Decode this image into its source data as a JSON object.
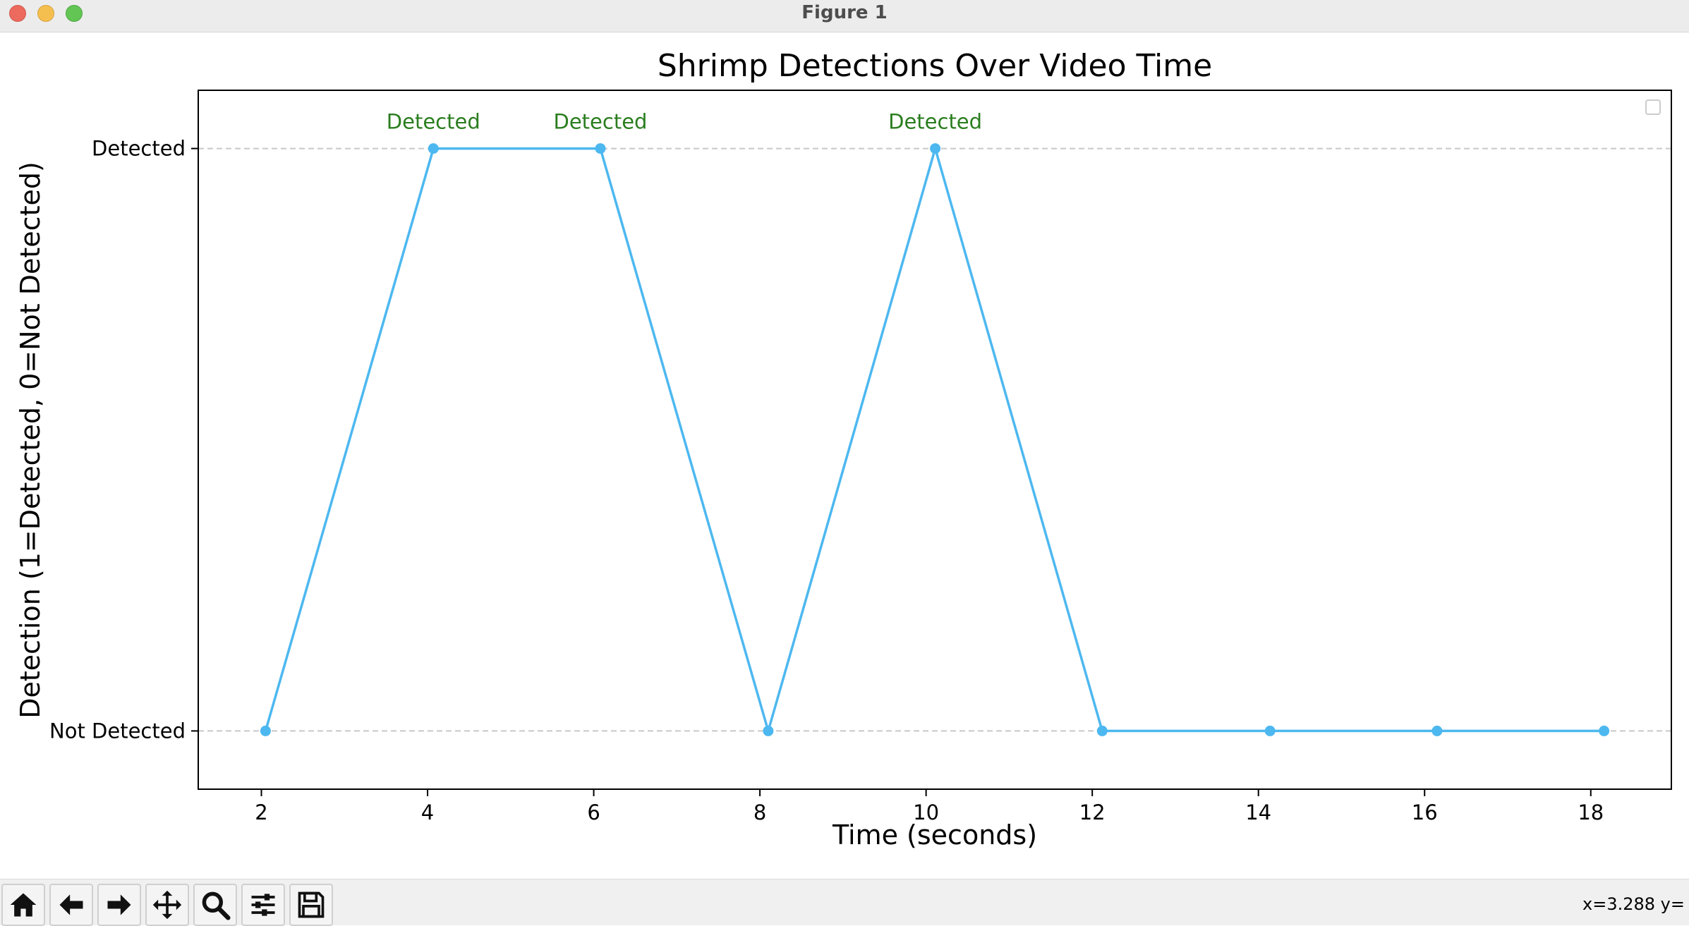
{
  "window": {
    "title": "Figure 1"
  },
  "toolbar": {
    "buttons": [
      {
        "name": "home-icon"
      },
      {
        "name": "back-arrow-icon"
      },
      {
        "name": "forward-arrow-icon"
      },
      {
        "name": "pan-move-icon"
      },
      {
        "name": "zoom-magnifier-icon"
      },
      {
        "name": "configure-subplots-icon"
      },
      {
        "name": "save-floppy-icon"
      }
    ],
    "coords": "x=3.288 y="
  },
  "chart_data": {
    "type": "line",
    "title": "Shrimp Detections Over Video Time",
    "xlabel": "Time (seconds)",
    "ylabel": "Detection (1=Detected, 0=Not Detected)",
    "x": [
      2.05,
      4.07,
      6.08,
      8.1,
      10.11,
      12.12,
      14.14,
      16.15,
      18.16
    ],
    "series": [
      {
        "values": [
          0,
          1,
          1,
          0,
          1,
          0,
          0,
          0,
          0
        ]
      }
    ],
    "point_labels": [
      "",
      "Detected",
      "Detected",
      "",
      "Detected",
      "",
      "",
      "",
      ""
    ],
    "xticks": [
      2,
      4,
      6,
      8,
      10,
      12,
      14,
      16,
      18
    ],
    "xtick_labels": [
      "2",
      "4",
      "6",
      "8",
      "10",
      "12",
      "14",
      "16",
      "18"
    ],
    "yticks": [
      0,
      1
    ],
    "ytick_labels": [
      "Not Detected",
      "Detected"
    ],
    "xlim": [
      1.24,
      18.97
    ],
    "ylim": [
      -0.1,
      1.1
    ],
    "grid": "horizontal dashed",
    "legend": "top-right (empty)",
    "colors": {
      "line": "#4db8f0",
      "annotation": "#2a7d1e",
      "grid": "#c8c8c8"
    }
  }
}
